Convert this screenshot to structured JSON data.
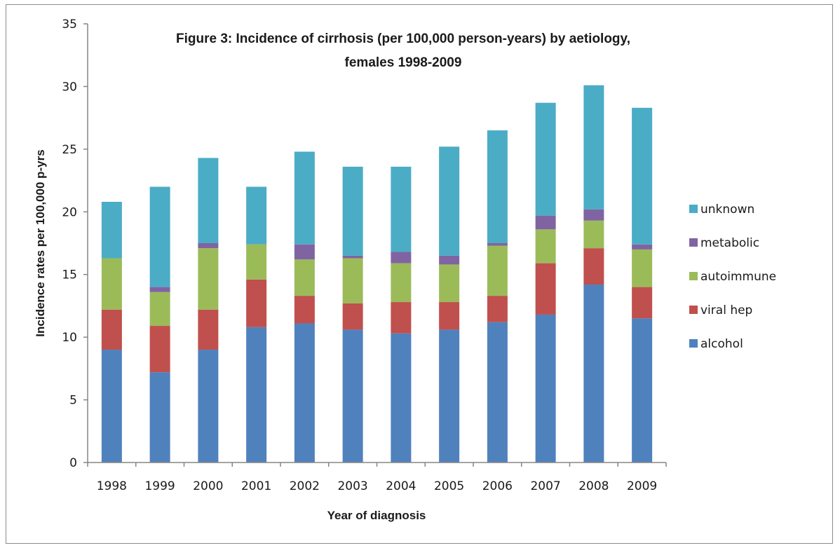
{
  "chart_data": {
    "type": "bar",
    "stacked": true,
    "title_lines": [
      "Figure 3: Incidence of cirrhosis (per 100,000  person-years) by aetiology,",
      "females 1998-2009"
    ],
    "xlabel": "Year of diagnosis",
    "ylabel": "Incidence rates per 100,000 p-yrs",
    "ylim": [
      0,
      35
    ],
    "yticks": [
      0,
      5,
      10,
      15,
      20,
      25,
      30,
      35
    ],
    "grid": false,
    "legend_position": "right",
    "categories": [
      "1998",
      "1999",
      "2000",
      "2001",
      "2002",
      "2003",
      "2004",
      "2005",
      "2006",
      "2007",
      "2008",
      "2009"
    ],
    "series": [
      {
        "name": "alcohol",
        "color": "#4f81bd",
        "values": [
          9.0,
          7.2,
          9.0,
          10.8,
          11.1,
          10.6,
          10.3,
          10.6,
          11.2,
          11.8,
          14.2,
          11.5
        ]
      },
      {
        "name": "viral hep",
        "color": "#c0504d",
        "values": [
          3.2,
          3.7,
          3.2,
          3.8,
          2.2,
          2.1,
          2.5,
          2.2,
          2.1,
          4.1,
          2.9,
          2.5
        ]
      },
      {
        "name": "autoimmune",
        "color": "#9bbb59",
        "values": [
          4.1,
          2.7,
          4.9,
          2.8,
          2.9,
          3.6,
          3.1,
          3.0,
          4.0,
          2.7,
          2.2,
          3.0
        ]
      },
      {
        "name": "metabolic",
        "color": "#8064a2",
        "values": [
          0.0,
          0.4,
          0.4,
          0.0,
          1.2,
          0.2,
          0.9,
          0.7,
          0.2,
          1.1,
          0.9,
          0.4
        ]
      },
      {
        "name": "unknown",
        "color": "#4bacc6",
        "values": [
          4.5,
          8.0,
          6.8,
          4.6,
          7.4,
          7.1,
          6.8,
          8.7,
          9.0,
          9.0,
          9.9,
          10.9
        ]
      }
    ]
  }
}
